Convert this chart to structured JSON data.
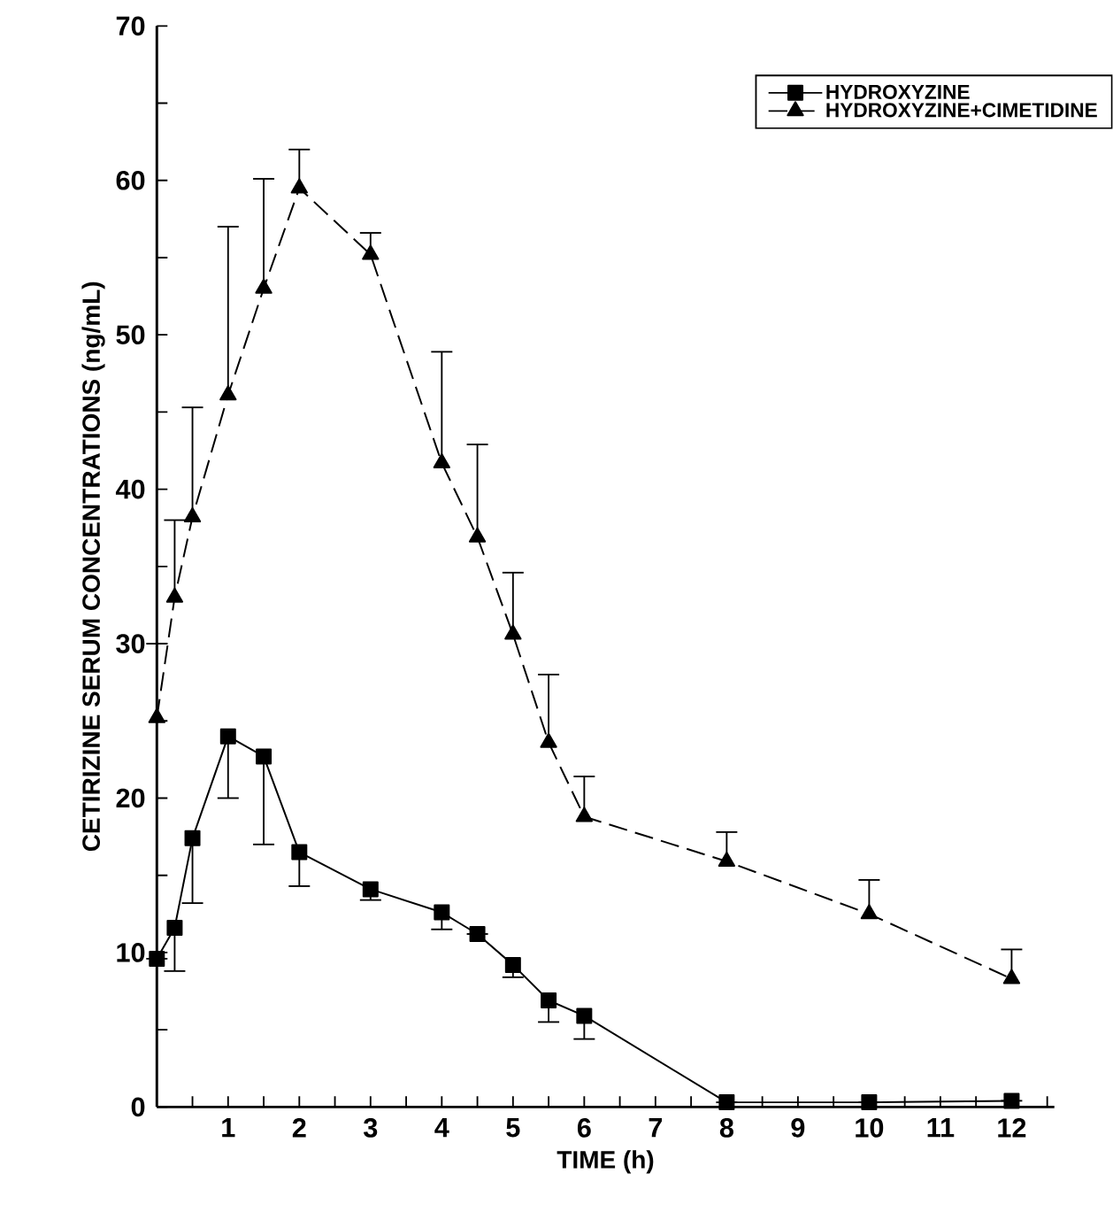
{
  "chart_data": {
    "type": "line",
    "xlabel": "TIME (h)",
    "ylabel": "CETIRIZINE SERUM CONCENTRATIONS (ng/mL)",
    "xlim": [
      0,
      12.6
    ],
    "ylim": [
      0,
      70
    ],
    "xticks": [
      {
        "value": 0.5,
        "label": null
      },
      1,
      {
        "value": 1.5,
        "label": null
      },
      2,
      {
        "value": 2.5,
        "label": null
      },
      3,
      {
        "value": 3.5,
        "label": null
      },
      4,
      {
        "value": 4.5,
        "label": null
      },
      5,
      {
        "value": 5.5,
        "label": null
      },
      6,
      {
        "value": 6.5,
        "label": null
      },
      7,
      {
        "value": 7.5,
        "label": null
      },
      8,
      {
        "value": 8.5,
        "label": null
      },
      9,
      {
        "value": 9.5,
        "label": null
      },
      10,
      {
        "value": 10.5,
        "label": null
      },
      11,
      {
        "value": 11.5,
        "label": null
      },
      12,
      {
        "value": 12.5,
        "label": null
      }
    ],
    "yticks": [
      0,
      {
        "value": 5,
        "label": null
      },
      10,
      {
        "value": 15,
        "label": null
      },
      20,
      {
        "value": 25,
        "label": null
      },
      30,
      {
        "value": 35,
        "label": null
      },
      40,
      {
        "value": 45,
        "label": null
      },
      50,
      {
        "value": 55,
        "label": null
      },
      60,
      {
        "value": 65,
        "label": null
      },
      70
    ],
    "legend": "top right",
    "grid": false,
    "series": [
      {
        "name": "HYDROXYZINE",
        "color": "#000000",
        "marker": "square",
        "line_style": "solid",
        "x": [
          0,
          0.25,
          0.5,
          1,
          1.5,
          2,
          3,
          4,
          4.5,
          5,
          5.5,
          6,
          8,
          10,
          12
        ],
        "values": [
          9.6,
          11.6,
          17.4,
          24,
          22.7,
          16.5,
          14.1,
          12.6,
          11.2,
          9.2,
          6.9,
          5.9,
          0.3,
          0.3,
          0.4
        ],
        "errors": [
          null,
          [
            8.8,
            11.6
          ],
          [
            13.2,
            17.4
          ],
          [
            20,
            24
          ],
          [
            17,
            22.7
          ],
          [
            14.3,
            16.5
          ],
          [
            13.4,
            14.1
          ],
          [
            11.5,
            12.6
          ],
          null,
          [
            8.4,
            9.2
          ],
          [
            5.5,
            6.9
          ],
          [
            4.4,
            5.9
          ],
          null,
          null,
          null
        ]
      },
      {
        "name": "HYDROXYZINE+CIMETIDINE",
        "color": "#000000",
        "marker": "triangle",
        "line_style": "dashed",
        "x": [
          0,
          0.25,
          0.5,
          1,
          1.5,
          2,
          3,
          4,
          4.5,
          5,
          5.5,
          6,
          8,
          10,
          12
        ],
        "values": [
          25.2,
          33,
          38.2,
          46.1,
          53,
          59.5,
          55.2,
          41.7,
          36.9,
          30.6,
          23.6,
          18.8,
          15.9,
          12.5,
          8.3
        ],
        "errors": [
          [
            25.2,
            30
          ],
          [
            33,
            38
          ],
          [
            38.2,
            45.3
          ],
          [
            46.1,
            57
          ],
          [
            53,
            60.1
          ],
          [
            59.5,
            62
          ],
          [
            55.2,
            56.6
          ],
          [
            41.7,
            48.9
          ],
          [
            36.9,
            42.9
          ],
          [
            30.6,
            34.6
          ],
          [
            23.6,
            28
          ],
          [
            18.8,
            21.4
          ],
          [
            15.9,
            17.8
          ],
          [
            12.5,
            14.7
          ],
          [
            8.3,
            10.2
          ]
        ]
      }
    ]
  }
}
